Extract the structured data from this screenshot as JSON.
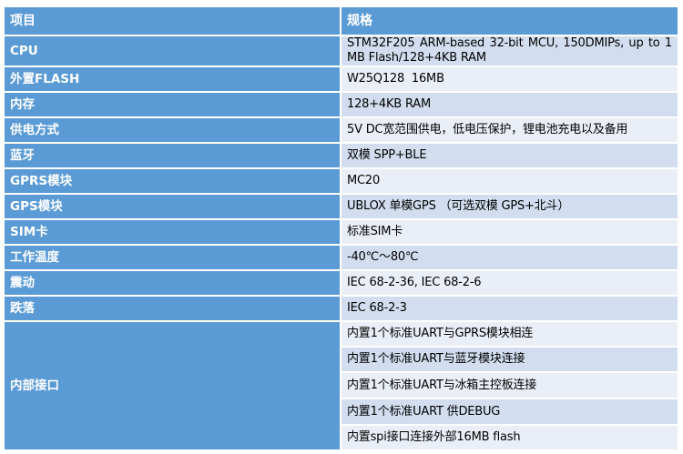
{
  "header": {
    "item": "项目",
    "spec": "规格"
  },
  "rows": [
    {
      "item": "CPU",
      "spec": "STM32F205 ARM-based 32-bit MCU, 150DMIPs, up to 1 MB Flash/128+4KB RAM"
    },
    {
      "item": "外置FLASH",
      "spec": "W25Q128  16MB"
    },
    {
      "item": "内存",
      "spec": "128+4KB RAM"
    },
    {
      "item": "供电方式",
      "spec": "5V DC宽范围供电，低电压保护，锂电池充电以及备用"
    },
    {
      "item": "蓝牙",
      "spec": "双模 SPP+BLE"
    },
    {
      "item": "GPRS模块",
      "spec": "MC20"
    },
    {
      "item": "GPS模块",
      "spec": "UBLOX 单模GPS （可选双模 GPS+北斗）"
    },
    {
      "item": "SIM卡",
      "spec": "标准SIM卡"
    },
    {
      "item": "工作温度",
      "spec": "-40℃～80℃"
    },
    {
      "item": "震动",
      "spec": "IEC 68-2-36, IEC 68-2-6"
    },
    {
      "item": "跌落",
      "spec": "IEC 68-2-3"
    }
  ],
  "interfaces": {
    "item": "内部接口",
    "specs": [
      "内置1个标准UART与GPRS模块相连",
      "内置1个标准UART与蓝牙模块连接",
      "内置1个标准UART与冰箱主控板连接",
      "内置1个标准UART 供DEBUG",
      "内置spi接口连接外部16MB flash"
    ]
  },
  "colors": {
    "header": "#5B9BD5",
    "row_dark": "#D2DEEF",
    "row_light": "#EAEFF7"
  }
}
